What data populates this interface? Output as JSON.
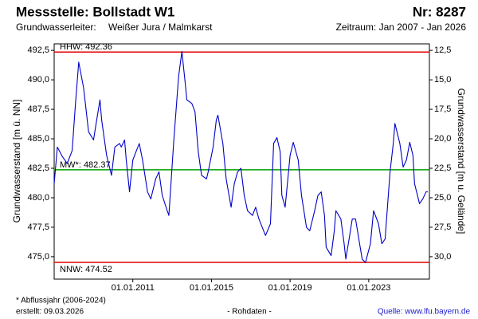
{
  "chart_data": {
    "type": "line",
    "title": "Messstelle: Bollstadt W1",
    "number": "Nr: 8287",
    "aquifer_label": "Grundwasserleiter:",
    "aquifer": "Weißer Jura / Malmkarst",
    "period": "Zeitraum: Jan 2007 - Jan 2026",
    "ylabel": "Grundwasserstand [m ü. NN]",
    "y2label": "Grundwasserstand [m u. Gelände]",
    "footnote": "* Abflussjahr (2006-2024)",
    "created": "erstellt:  09.03.2026",
    "status": "- Rohdaten -",
    "source": "Quelle: www.lfu.bayern.de",
    "xlim": [
      "2007-01-01",
      "2026-02-01"
    ],
    "xticks": [
      {
        "value": "2011-01-01",
        "label": "01.01.2011"
      },
      {
        "value": "2015-01-01",
        "label": "01.01.2015"
      },
      {
        "value": "2019-01-01",
        "label": "01.01.2019"
      },
      {
        "value": "2023-01-01",
        "label": "01.01.2023"
      }
    ],
    "ylim": [
      473.1,
      493.05
    ],
    "yticks": [
      {
        "value": 475,
        "label": "475,0"
      },
      {
        "value": 477.5,
        "label": "477,5"
      },
      {
        "value": 480,
        "label": "480,0"
      },
      {
        "value": 482.5,
        "label": "482,5"
      },
      {
        "value": 485,
        "label": "485,0"
      },
      {
        "value": 487.5,
        "label": "487,5"
      },
      {
        "value": 490,
        "label": "490,0"
      },
      {
        "value": 492.5,
        "label": "492,5"
      }
    ],
    "y2lim": [
      31.9,
      11.95
    ],
    "y2ticks": [
      {
        "value": 12.5,
        "label": "12,5"
      },
      {
        "value": 15,
        "label": "15,0"
      },
      {
        "value": 17.5,
        "label": "17,5"
      },
      {
        "value": 20,
        "label": "20,0"
      },
      {
        "value": 22.5,
        "label": "22,5"
      },
      {
        "value": 25,
        "label": "25,0"
      },
      {
        "value": 27.5,
        "label": "27,5"
      },
      {
        "value": 30,
        "label": "30,0"
      }
    ],
    "reference_lines": [
      {
        "label": "HHW: 492.36",
        "value": 492.36,
        "color": "#e00000",
        "label_side": "above"
      },
      {
        "label": "MW*: 482.37",
        "value": 482.37,
        "color": "#00a000",
        "label_side": "above"
      },
      {
        "label": "NNW: 474.52",
        "value": 474.52,
        "color": "#e00000",
        "label_side": "below"
      }
    ],
    "series": [
      {
        "color": "#0000c8",
        "x": [
          "2007-01-01",
          "2007-03-01",
          "2007-06-01",
          "2007-09-01",
          "2007-12-01",
          "2008-02-01",
          "2008-04-01",
          "2008-07-01",
          "2008-10-01",
          "2009-01-01",
          "2009-03-01",
          "2009-05-01",
          "2009-06-01",
          "2009-09-01",
          "2009-12-01",
          "2010-02-01",
          "2010-05-01",
          "2010-06-01",
          "2010-08-01",
          "2010-09-01",
          "2010-11-01",
          "2011-01-01",
          "2011-03-01",
          "2011-05-01",
          "2011-07-01",
          "2011-10-01",
          "2011-12-01",
          "2012-03-01",
          "2012-05-01",
          "2012-07-01",
          "2012-10-01",
          "2012-11-01",
          "2013-02-01",
          "2013-05-01",
          "2013-07-01",
          "2013-09-01",
          "2013-10-01",
          "2014-01-01",
          "2014-03-01",
          "2014-05-01",
          "2014-07-01",
          "2014-10-01",
          "2014-11-01",
          "2015-02-01",
          "2015-04-01",
          "2015-05-01",
          "2015-08-01",
          "2015-10-01",
          "2016-01-01",
          "2016-03-01",
          "2016-05-01",
          "2016-07-01",
          "2016-09-01",
          "2016-11-01",
          "2017-02-01",
          "2017-04-01",
          "2017-06-01",
          "2017-08-01",
          "2017-10-01",
          "2018-01-01",
          "2018-03-01",
          "2018-05-01",
          "2018-07-01",
          "2018-08-01",
          "2018-10-01",
          "2019-01-01",
          "2019-03-01",
          "2019-06-01",
          "2019-08-01",
          "2019-11-01",
          "2020-01-01",
          "2020-04-01",
          "2020-06-01",
          "2020-08-01",
          "2020-10-01",
          "2020-11-01",
          "2021-02-01",
          "2021-04-01",
          "2021-05-01",
          "2021-08-01",
          "2021-10-01",
          "2021-11-01",
          "2022-01-01",
          "2022-03-01",
          "2022-05-01",
          "2022-07-01",
          "2022-09-01",
          "2022-11-01",
          "2023-02-01",
          "2023-04-01",
          "2023-07-01",
          "2023-09-01",
          "2023-11-01",
          "2024-02-01",
          "2024-04-01",
          "2024-05-01",
          "2024-08-01",
          "2024-10-01",
          "2024-12-01",
          "2025-02-01",
          "2025-04-01",
          "2025-05-01",
          "2025-08-01",
          "2025-10-01",
          "2025-12-01",
          "2026-01-01"
        ],
        "values": [
          481.2,
          484.3,
          483.5,
          482.9,
          484.0,
          488.0,
          491.5,
          489.3,
          485.6,
          484.9,
          486.6,
          488.3,
          486.6,
          483.6,
          481.9,
          484.3,
          484.6,
          484.3,
          484.9,
          483.2,
          480.5,
          483.2,
          483.9,
          484.6,
          483.2,
          480.5,
          479.9,
          481.6,
          482.2,
          480.2,
          478.9,
          478.5,
          484.9,
          490.3,
          492.4,
          489.7,
          488.3,
          488.0,
          487.3,
          483.9,
          481.9,
          481.6,
          482.2,
          484.3,
          486.6,
          487.0,
          484.6,
          481.6,
          479.2,
          481.2,
          482.2,
          482.5,
          480.2,
          478.9,
          478.5,
          479.2,
          478.2,
          477.5,
          476.8,
          477.8,
          484.6,
          485.1,
          483.9,
          480.2,
          479.2,
          483.6,
          484.7,
          483.2,
          480.2,
          477.5,
          477.2,
          478.9,
          480.2,
          480.5,
          478.5,
          475.8,
          475.1,
          477.2,
          478.9,
          478.2,
          476.1,
          474.8,
          476.5,
          478.2,
          478.2,
          476.5,
          474.8,
          474.5,
          476.1,
          478.9,
          477.8,
          476.1,
          476.5,
          482.2,
          484.6,
          486.3,
          484.6,
          482.6,
          483.2,
          484.7,
          483.6,
          481.2,
          479.5,
          479.9,
          480.5,
          480.5
        ]
      }
    ]
  }
}
